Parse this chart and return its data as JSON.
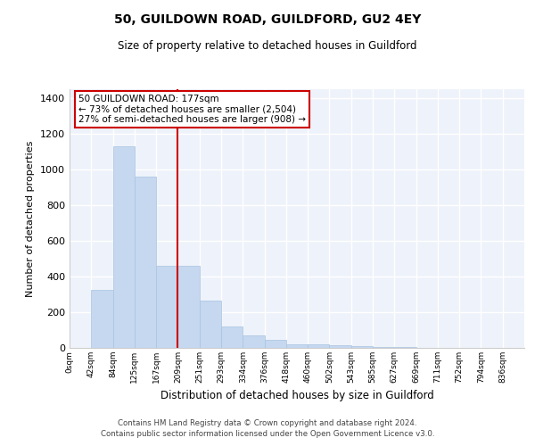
{
  "title1": "50, GUILDOWN ROAD, GUILDFORD, GU2 4EY",
  "title2": "Size of property relative to detached houses in Guildford",
  "xlabel": "Distribution of detached houses by size in Guildford",
  "ylabel": "Number of detached properties",
  "categories": [
    "0sqm",
    "42sqm",
    "84sqm",
    "125sqm",
    "167sqm",
    "209sqm",
    "251sqm",
    "293sqm",
    "334sqm",
    "376sqm",
    "418sqm",
    "460sqm",
    "502sqm",
    "543sqm",
    "585sqm",
    "627sqm",
    "669sqm",
    "711sqm",
    "752sqm",
    "794sqm",
    "836sqm"
  ],
  "values": [
    0,
    325,
    1130,
    960,
    460,
    460,
    265,
    120,
    70,
    45,
    20,
    20,
    15,
    10,
    5,
    3,
    1,
    0,
    0,
    0,
    0
  ],
  "bar_color": "#c5d8f0",
  "bar_edge_color": "#a8c4e0",
  "bar_width": 1.0,
  "red_line_x": 5.0,
  "annotation_text": "50 GUILDOWN ROAD: 177sqm\n← 73% of detached houses are smaller (2,504)\n27% of semi-detached houses are larger (908) →",
  "annotation_box_color": "#ffffff",
  "annotation_box_edge": "#cc0000",
  "ylim": [
    0,
    1450
  ],
  "yticks": [
    0,
    200,
    400,
    600,
    800,
    1000,
    1200,
    1400
  ],
  "background_color": "#eef2fa",
  "grid_color": "#ffffff",
  "footer_line1": "Contains HM Land Registry data © Crown copyright and database right 2024.",
  "footer_line2": "Contains public sector information licensed under the Open Government Licence v3.0."
}
